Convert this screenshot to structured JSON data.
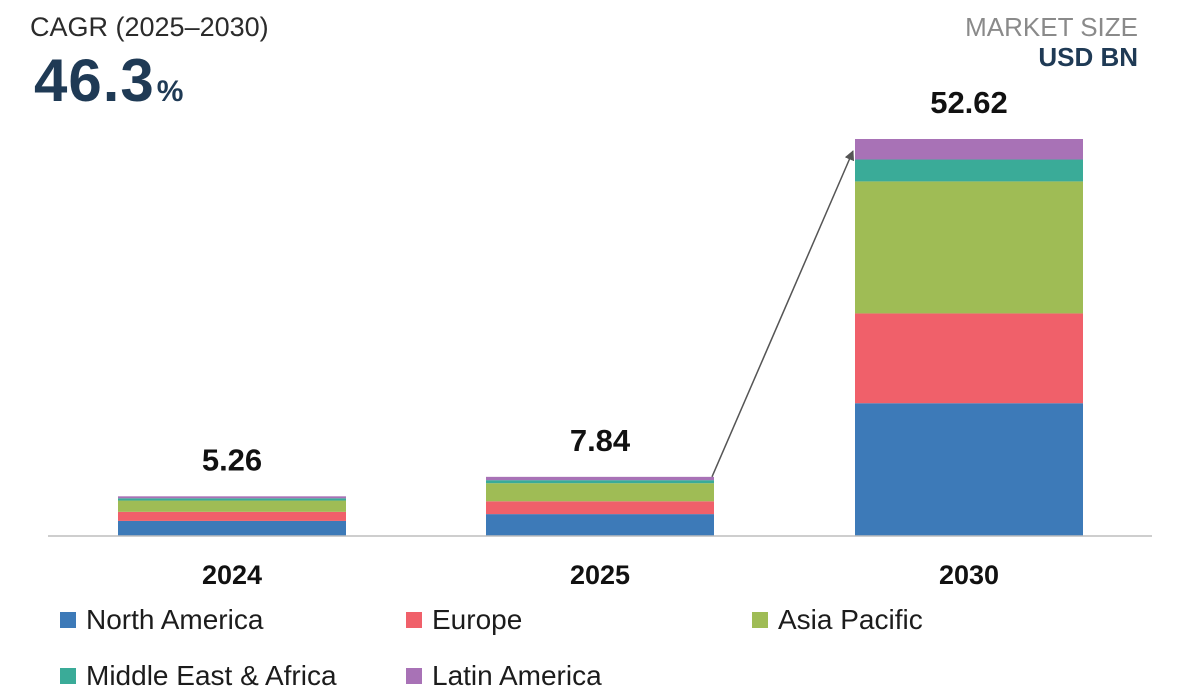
{
  "header": {
    "cagr_label": "CAGR (2025–2030)",
    "cagr_value": "46.3",
    "cagr_unit": "%",
    "market_size_label": "MARKET SIZE",
    "market_size_unit": "USD BN"
  },
  "chart_data": {
    "type": "bar",
    "stacked": true,
    "categories": [
      "2024",
      "2025",
      "2030"
    ],
    "totals": [
      "5.26",
      "7.84",
      "52.62"
    ],
    "series": [
      {
        "name": "North America",
        "color": "#3d7ab8",
        "values": [
          2.0,
          2.9,
          17.6
        ]
      },
      {
        "name": "Europe",
        "color": "#f0606a",
        "values": [
          1.2,
          1.7,
          11.9
        ]
      },
      {
        "name": "Asia Pacific",
        "color": "#9fbc55",
        "values": [
          1.5,
          2.4,
          17.5
        ]
      },
      {
        "name": "Middle East & Africa",
        "color": "#3aab98",
        "values": [
          0.3,
          0.4,
          2.9
        ]
      },
      {
        "name": "Latin America",
        "color": "#a872b6",
        "values": [
          0.26,
          0.44,
          2.72
        ]
      }
    ],
    "ylim": [
      0,
      52.62
    ],
    "grid": false,
    "legend_position": "bottom",
    "annotation": "arrow from 2025 bar top to 2030 bar top"
  }
}
